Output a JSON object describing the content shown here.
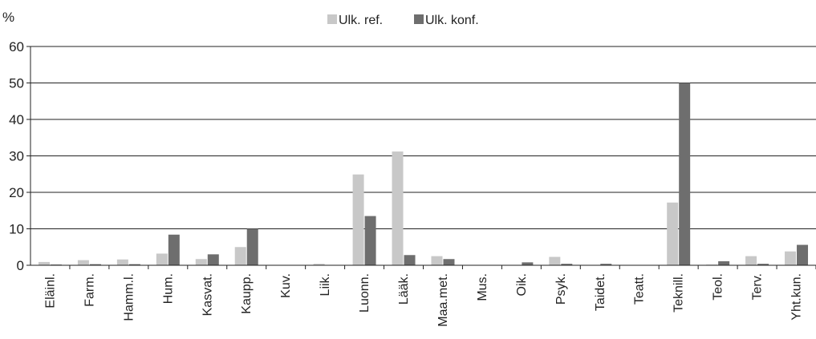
{
  "chart_data": {
    "type": "bar",
    "ylabel": "%",
    "ylim": [
      0,
      60
    ],
    "yticks": [
      "0",
      "10",
      "20",
      "30",
      "40",
      "50",
      "60"
    ],
    "grid": true,
    "legend_position": "top-center",
    "categories": [
      "Eläinl.",
      "Farm.",
      "Hamm.l.",
      "Hum.",
      "Kasvat.",
      "Kaupp.",
      "Kuv.",
      "Liik.",
      "Luonn.",
      "Lääk.",
      "Maa.met.",
      "Mus.",
      "Oik.",
      "Psyk.",
      "Taidet.",
      "Teatt.",
      "Teknill.",
      "Teol.",
      "Terv.",
      "Yht.kun."
    ],
    "series": [
      {
        "name": "Ulk. ref.",
        "color": "#c8c8c8",
        "values": [
          0.9,
          1.4,
          1.6,
          3.2,
          1.7,
          5.0,
          0,
          0.4,
          24.9,
          31.2,
          2.5,
          0,
          0.1,
          2.3,
          0,
          0,
          17.2,
          0.2,
          2.5,
          3.8
        ]
      },
      {
        "name": "Ulk. konf.",
        "color": "#6e6e6e",
        "values": [
          0.2,
          0.3,
          0.3,
          8.4,
          3.0,
          10.0,
          0,
          0,
          13.5,
          2.8,
          1.7,
          0,
          0.8,
          0.4,
          0.4,
          0,
          50.0,
          1.1,
          0.4,
          5.6
        ]
      }
    ]
  }
}
